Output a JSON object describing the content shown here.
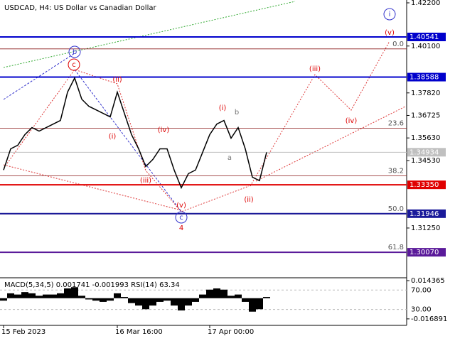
{
  "chart_data": {
    "type": "line",
    "title": "USDCAD, H4:  US Dollar vs Canadian Dollar",
    "color": "#000000",
    "values": [
      1.34068,
      1.35101,
      1.35274,
      1.35791,
      1.36135,
      1.35963,
      1.36135,
      1.36308,
      1.3648,
      1.37858,
      1.38547,
      1.37514,
      1.37169,
      1.36997,
      1.36824,
      1.36652,
      1.37858,
      1.36824,
      1.35791,
      1.35101,
      1.3424,
      1.34585,
      1.35101,
      1.35101,
      1.34068,
      1.33206,
      1.33895,
      1.34068,
      1.34929,
      1.35791,
      1.36308,
      1.3648,
      1.35618,
      1.36135,
      1.35101,
      1.33723,
      1.33551,
      1.34929
    ],
    "xticks": [
      {
        "value": 0,
        "label": "15 Feb 2023"
      },
      {
        "value": 16,
        "label": "16 Mar 16:00"
      },
      {
        "value": 29,
        "label": "17 Apr 00:00"
      }
    ],
    "ylim": [
      1.2883,
      1.42338
    ],
    "yticks": [
      {
        "value": 1.422,
        "label": "1.42200"
      },
      {
        "value": 1.401,
        "label": "1.40100"
      },
      {
        "value": 1.3782,
        "label": "1.37820"
      },
      {
        "value": 1.36725,
        "label": "1.36725"
      },
      {
        "value": 1.3563,
        "label": "1.35630"
      },
      {
        "value": 1.3453,
        "label": "1.34530"
      },
      {
        "value": 1.3125,
        "label": "1.31250"
      }
    ],
    "levels": [
      {
        "value": 1.40541,
        "label": "1.40541",
        "color": "#0000cc"
      },
      {
        "value": 1.38588,
        "label": "1.38588",
        "color": "#0000cc"
      },
      {
        "value": 1.34934,
        "label": "1.34934",
        "color": "#c0c0c0"
      },
      {
        "value": 1.3335,
        "label": "1.33350",
        "color": "#e00000"
      },
      {
        "value": 1.31946,
        "label": "1.31946",
        "color": "#1a1a9a"
      },
      {
        "value": 1.3007,
        "label": "1.30070",
        "color": "#5a1a9a"
      }
    ],
    "fib": [
      {
        "value": 0,
        "label": "0.0",
        "price": 1.3996
      },
      {
        "value": 23.6,
        "label": "23.6",
        "price": 1.36101
      },
      {
        "value": 38.2,
        "label": "38.2",
        "price": 1.33792
      },
      {
        "value": 50,
        "label": "50.0",
        "price": 1.31931
      },
      {
        "value": 61.8,
        "label": "61.8",
        "price": 1.3007
      }
    ],
    "annotations": [
      "b",
      "c",
      "(ii)",
      "(i)",
      "(iv)",
      "(iii)",
      "(v)",
      "c",
      "4",
      "(i)",
      "b",
      "a",
      "(ii)",
      "(iii)",
      "(iv)",
      "(v)",
      "i"
    ],
    "macd": {
      "label": "MACD(5,34,5) 0.001741 -0.001993 RSI(14) 63.34",
      "color": "#000000",
      "values": [
        -0.002,
        0.004,
        0.003,
        0.005,
        0.004,
        0.002,
        0.003,
        0.003,
        0.004,
        0.008,
        0.009,
        0.002,
        -0.001,
        -0.002,
        -0.003,
        -0.002,
        0.004,
        0.001,
        -0.004,
        -0.006,
        -0.009,
        -0.006,
        -0.003,
        -0.002,
        -0.006,
        -0.01,
        -0.006,
        -0.003,
        0.003,
        0.007,
        0.008,
        0.007,
        0.002,
        0.003,
        -0.003,
        -0.011,
        -0.009,
        0.001
      ],
      "ylim": [
        -0.0222,
        0.0167
      ],
      "yticks": [
        {
          "value": 0.014365,
          "label": "0.014365"
        },
        {
          "value": -0.016891,
          "label": "-0.016891"
        }
      ],
      "rsi_ylim": [
        -2.6,
        95.2
      ],
      "rsi_yticks": [
        {
          "value": 70,
          "label": "70.00"
        },
        {
          "value": 30,
          "label": "30.00"
        }
      ]
    }
  }
}
